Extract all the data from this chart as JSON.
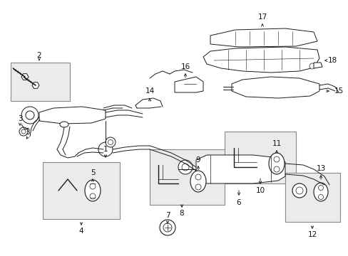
{
  "bg_color": "#ffffff",
  "line_color": "#1a1a1a",
  "box_fill": "#ebebeb",
  "box_edge": "#888888",
  "fig_width": 4.89,
  "fig_height": 3.6,
  "dpi": 100,
  "label_fontsize": 7.5,
  "label_color": "#111111"
}
